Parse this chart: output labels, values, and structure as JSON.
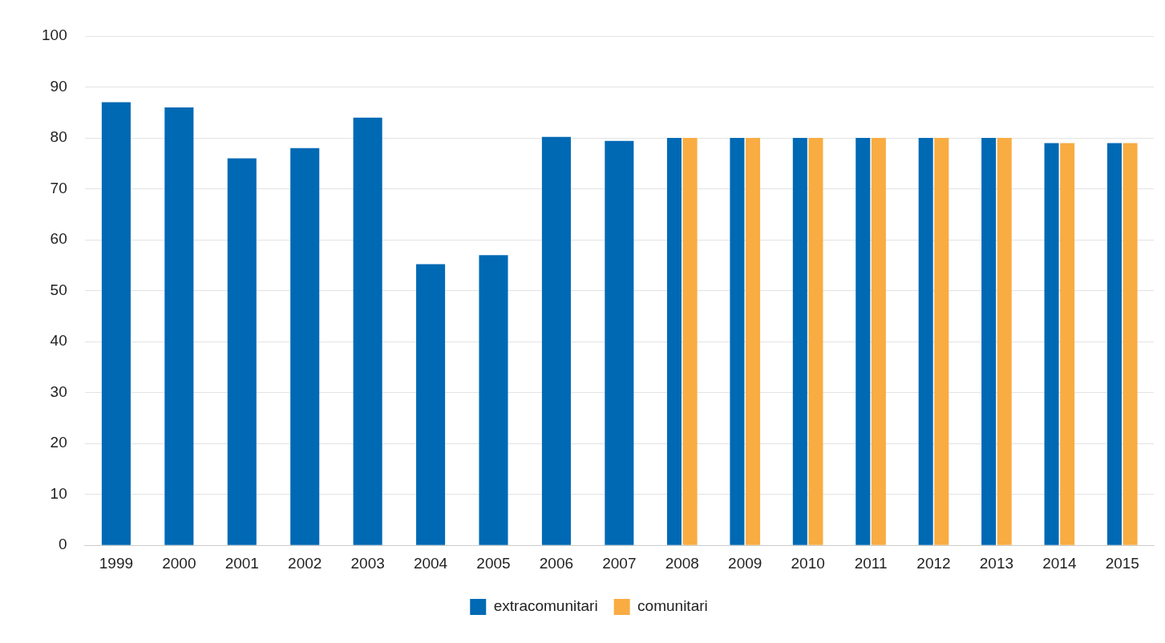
{
  "chart_data": {
    "type": "bar",
    "categories": [
      "1999",
      "2000",
      "2001",
      "2002",
      "2003",
      "2004",
      "2005",
      "2006",
      "2007",
      "2008",
      "2009",
      "2010",
      "2011",
      "2012",
      "2013",
      "2014",
      "2015"
    ],
    "series": [
      {
        "name": "extracomunitari",
        "color": "#0069b4",
        "values": [
          87,
          86,
          76,
          78,
          84,
          55.2,
          57,
          80.2,
          79.4,
          80,
          80,
          80,
          80,
          80,
          80,
          79,
          79
        ]
      },
      {
        "name": "comunitari",
        "color": "#f8ac42",
        "values": [
          null,
          null,
          null,
          null,
          null,
          null,
          null,
          null,
          null,
          80,
          80,
          80,
          80,
          80,
          80,
          79,
          79
        ]
      }
    ],
    "ylim": [
      0,
      100
    ],
    "yticks": [
      0,
      10,
      20,
      30,
      40,
      50,
      60,
      70,
      80,
      90,
      100
    ],
    "grid": "y",
    "legend": "bottom"
  }
}
